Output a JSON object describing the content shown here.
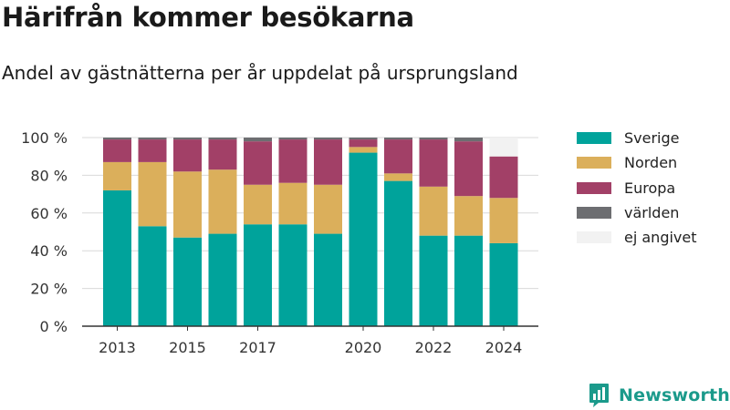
{
  "title": "Härifrån kommer besökarna",
  "subtitle": "Andel av gästnätterna per år uppdelat på ursprungsland",
  "brand": {
    "name": "Newsworthy",
    "icon": "newsworthy-chart-icon",
    "color": "#1b9a8b"
  },
  "chart_data": {
    "type": "bar",
    "stacked": true,
    "categories": [
      "2013",
      "2014",
      "2015",
      "2016",
      "2017",
      "2018",
      "2019",
      "2020",
      "2021",
      "2022",
      "2023",
      "2024"
    ],
    "x_tick_labels": [
      "2013",
      "2015",
      "2017",
      "2020",
      "2022",
      "2024"
    ],
    "y_tick_labels": [
      "0 %",
      "20 %",
      "40 %",
      "60 %",
      "80 %",
      "100 %"
    ],
    "ylim": [
      0,
      100
    ],
    "y_ticks": [
      0,
      20,
      40,
      60,
      80,
      100
    ],
    "y_unit": "%",
    "grid": true,
    "legend_position": "right",
    "series": [
      {
        "name": "Sverige",
        "color": "#00a39b",
        "values": [
          72,
          53,
          47,
          49,
          54,
          54,
          49,
          92,
          77,
          48,
          48,
          44
        ]
      },
      {
        "name": "Norden",
        "color": "#dbaf5b",
        "values": [
          15,
          34,
          35,
          34,
          21,
          22,
          26,
          3,
          4,
          26,
          21,
          24
        ]
      },
      {
        "name": "Europa",
        "color": "#a24067",
        "values": [
          12,
          12,
          17,
          16,
          23,
          23,
          24,
          4,
          18,
          25,
          29,
          22
        ]
      },
      {
        "name": "världen",
        "color": "#6d6e71",
        "values": [
          1,
          1,
          1,
          1,
          2,
          1,
          1,
          1,
          1,
          1,
          2,
          0
        ]
      },
      {
        "name": "ej angivet",
        "color": "#f2f2f2",
        "values": [
          0,
          0,
          0,
          0,
          0,
          0,
          0,
          0,
          0,
          0,
          0,
          10
        ]
      }
    ]
  }
}
